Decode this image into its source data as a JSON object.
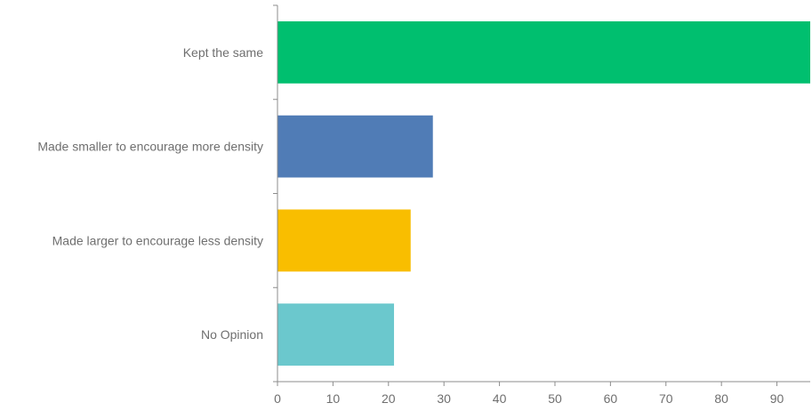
{
  "chart_data": {
    "type": "bar",
    "orientation": "horizontal",
    "categories": [
      "Kept the same",
      "Made smaller to encourage more density",
      "Made larger to encourage less density",
      "No Opinion"
    ],
    "values": [
      96,
      28,
      24,
      21
    ],
    "colors": [
      "#00bf6f",
      "#507cb6",
      "#f9be00",
      "#6bc8cd"
    ],
    "title": "",
    "xlabel": "",
    "ylabel": "",
    "xlim": [
      0,
      96
    ],
    "xticks": [
      0,
      10,
      20,
      30,
      40,
      50,
      60,
      70,
      80,
      90
    ],
    "grid": false,
    "legend": "none"
  }
}
